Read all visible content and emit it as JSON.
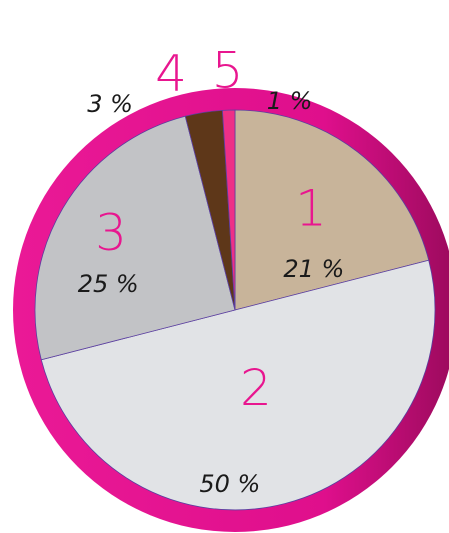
{
  "chart_data": {
    "type": "pie",
    "categories": [
      "1",
      "2",
      "3",
      "4",
      "5"
    ],
    "values": [
      21,
      50,
      25,
      3,
      1
    ],
    "value_labels": [
      "21 %",
      "50 %",
      "25 %",
      "3 %",
      "1 %"
    ],
    "colors": [
      "#c8b49a",
      "#e1e3e6",
      "#c2c3c6",
      "#5e3719",
      "#ee2f87"
    ],
    "ring_color": "#e3118d",
    "number_label_color": "#e8168f"
  }
}
